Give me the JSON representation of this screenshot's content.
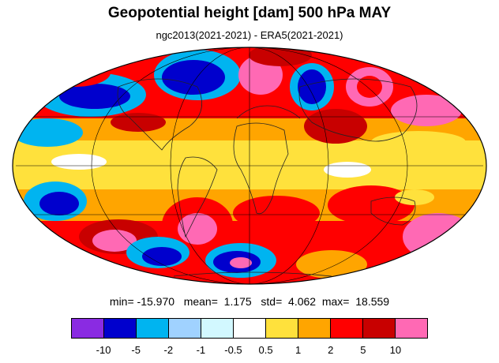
{
  "title": "Geopotential height [dam] 500 hPa MAY",
  "subtitle": "ngc2013(2021-2021) - ERA5(2021-2021)",
  "stats": {
    "min_label": "min=",
    "min_value": "-15.970",
    "mean_label": "mean=",
    "mean_value": "1.175",
    "std_label": "std=",
    "std_value": "4.062",
    "max_label": "max=",
    "max_value": "18.559"
  },
  "colorbar": {
    "colors": [
      "#8a2be2",
      "#0000cd",
      "#00b4f0",
      "#a0d2ff",
      "#d2f8ff",
      "#ffffff",
      "#ffe13c",
      "#ffa500",
      "#ff0000",
      "#c80000",
      "#ff69b4"
    ],
    "tick_labels": [
      "-10",
      "-5",
      "-2",
      "-1",
      "-0.5",
      "0.5",
      "1",
      "2",
      "5",
      "10"
    ]
  },
  "map": {
    "projection": "Mollweide",
    "grid": true,
    "coastlines": true
  }
}
